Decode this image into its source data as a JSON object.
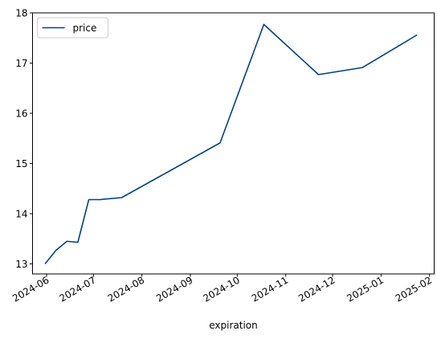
{
  "chart_data": {
    "type": "line",
    "title": "",
    "xlabel": "expiration",
    "ylabel": "",
    "x_ticks": [
      "2024-06",
      "2024-07",
      "2024-08",
      "2024-09",
      "2024-10",
      "2024-11",
      "2024-12",
      "2025-01",
      "2025-02"
    ],
    "y_ticks": [
      "13",
      "14",
      "15",
      "16",
      "17",
      "18"
    ],
    "xlim": [
      "2024-05-23",
      "2025-02-04"
    ],
    "ylim": [
      12.8,
      18.0
    ],
    "grid": false,
    "legend_position": "top-left",
    "series": [
      {
        "name": "price",
        "color": "#00418a",
        "points": [
          {
            "x": "2024-05-31",
            "y": 13.0
          },
          {
            "x": "2024-06-07",
            "y": 13.27
          },
          {
            "x": "2024-06-14",
            "y": 13.45
          },
          {
            "x": "2024-06-21",
            "y": 13.43
          },
          {
            "x": "2024-06-28",
            "y": 14.28
          },
          {
            "x": "2024-07-05",
            "y": 14.28
          },
          {
            "x": "2024-07-19",
            "y": 14.32
          },
          {
            "x": "2024-09-20",
            "y": 15.41
          },
          {
            "x": "2024-10-18",
            "y": 17.77
          },
          {
            "x": "2024-11-22",
            "y": 16.77
          },
          {
            "x": "2024-12-20",
            "y": 16.91
          },
          {
            "x": "2025-01-24",
            "y": 17.56
          }
        ]
      }
    ]
  }
}
